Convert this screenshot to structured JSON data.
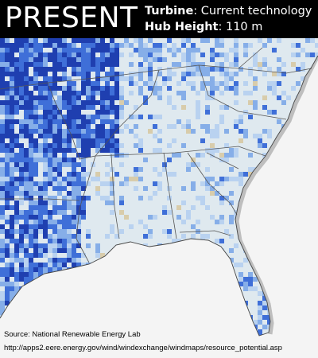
{
  "header": {
    "title": "PRESENT",
    "turbine_label": "Turbine",
    "turbine_value": ": Current technology",
    "hub_label": "Hub Height",
    "hub_value": ": 110 m"
  },
  "footer": {
    "source": "Source: National Renewable Energy Lab",
    "url": "http://apps2.eere.energy.gov/wind/windexchange/windmaps/resource_potential.asp"
  }
}
